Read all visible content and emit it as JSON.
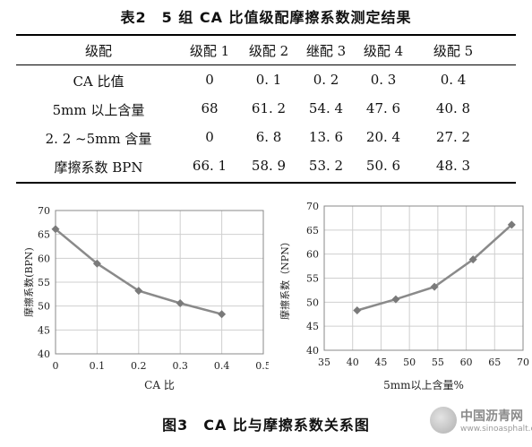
{
  "table": {
    "title": "表2　5 组 CA 比值级配摩擦系数测定结果",
    "headers": [
      "级配",
      "级配 1",
      "级配 2",
      "继配 3",
      "级配 4",
      "级配 5"
    ],
    "rows": [
      [
        "CA 比值",
        "0",
        "0. 1",
        "0. 2",
        "0. 3",
        "0. 4"
      ],
      [
        "5mm 以上含量",
        "68",
        "61. 2",
        "54. 4",
        "47. 6",
        "40. 8"
      ],
      [
        "2. 2 ~5mm 含量",
        "0",
        "6. 8",
        "13. 6",
        "20. 4",
        "27. 2"
      ],
      [
        "摩擦系数 BPN",
        "66. 1",
        "58. 9",
        "53. 2",
        "50. 6",
        "48. 3"
      ]
    ]
  },
  "chart_data": [
    {
      "type": "line",
      "x": [
        0,
        0.1,
        0.2,
        0.3,
        0.4
      ],
      "series": [
        {
          "values": [
            66.1,
            58.9,
            53.2,
            50.6,
            48.3
          ]
        }
      ],
      "xlabel": "CA 比",
      "ylabel": "摩擦系数(BPN)",
      "xlim": [
        0,
        0.5
      ],
      "ylim": [
        40,
        70
      ],
      "xticks": [
        "0",
        "0.1",
        "0.2",
        "0.3",
        "0.4",
        "0.5"
      ],
      "yticks": [
        "40",
        "45",
        "50",
        "55",
        "60",
        "65",
        "70"
      ],
      "grid": true,
      "color": "#8a8a8a"
    },
    {
      "type": "line",
      "x": [
        40.8,
        47.6,
        54.4,
        61.2,
        68
      ],
      "series": [
        {
          "values": [
            48.3,
            50.6,
            53.2,
            58.9,
            66.1
          ]
        }
      ],
      "xlabel": "5mm以上含量%",
      "ylabel": "摩擦系数（NPN）",
      "xlim": [
        35,
        70
      ],
      "ylim": [
        40,
        70
      ],
      "xticks": [
        "35",
        "40",
        "45",
        "50",
        "55",
        "60",
        "65",
        "70"
      ],
      "yticks": [
        "40",
        "45",
        "50",
        "55",
        "60",
        "65",
        "70"
      ],
      "grid": true,
      "color": "#8a8a8a"
    }
  ],
  "figure_caption": "图3　CA 比与摩擦系数关系图",
  "watermark": {
    "name": "中国沥青网",
    "url": "www.sinoasphalt.com"
  }
}
